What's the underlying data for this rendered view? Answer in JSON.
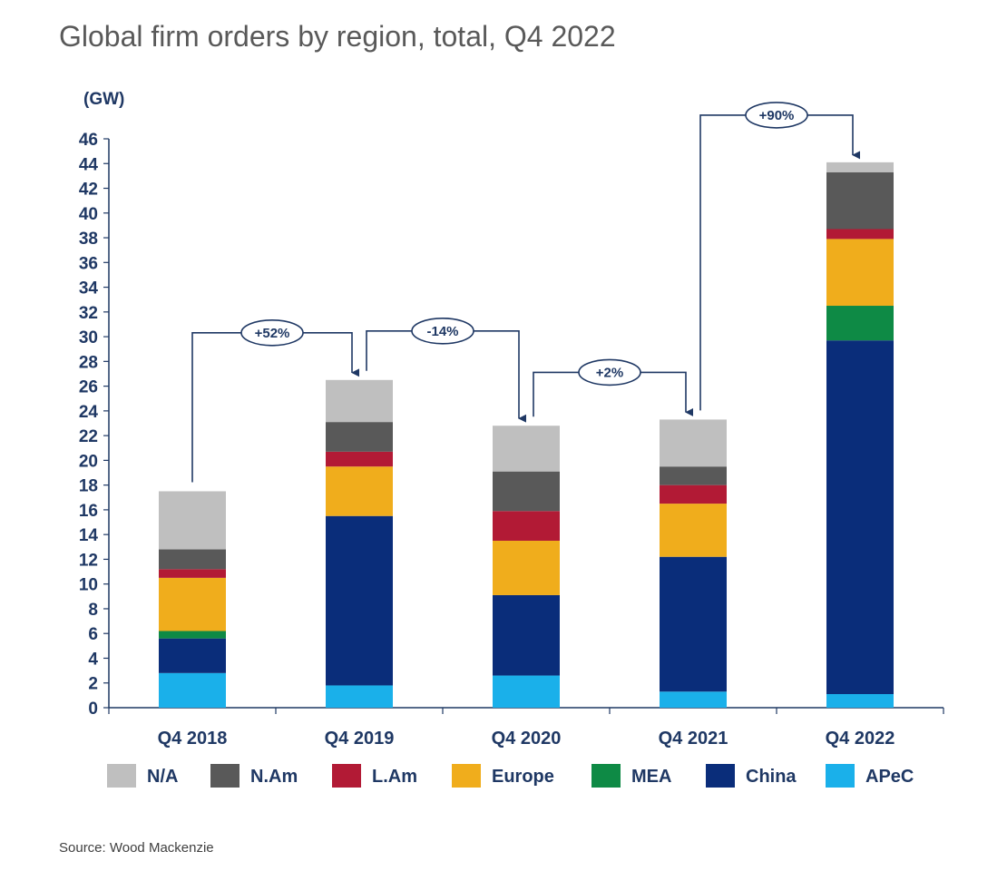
{
  "chart_data": {
    "type": "bar",
    "stacked": true,
    "title": "Global firm orders by region, total, Q4 2022",
    "unit_label": "(GW)",
    "source": "Source: Wood Mackenzie",
    "categories": [
      "Q4 2018",
      "Q4 2019",
      "Q4 2020",
      "Q4 2021",
      "Q4 2022"
    ],
    "ylim": [
      0,
      46
    ],
    "yticks": [
      0,
      2,
      4,
      6,
      8,
      10,
      12,
      14,
      16,
      18,
      20,
      22,
      24,
      26,
      28,
      30,
      32,
      34,
      36,
      38,
      40,
      42,
      44,
      46
    ],
    "grid": false,
    "legend_position": "bottom",
    "series": [
      {
        "name": "APeC",
        "color": "#1ab0ea",
        "values": [
          2.8,
          1.8,
          2.6,
          1.3,
          1.1
        ]
      },
      {
        "name": "China",
        "color": "#0a2d7a",
        "values": [
          2.8,
          13.7,
          6.5,
          10.9,
          28.6
        ]
      },
      {
        "name": "MEA",
        "color": "#0e8a45",
        "values": [
          0.6,
          0.0,
          0.0,
          0.0,
          2.8
        ]
      },
      {
        "name": "Europe",
        "color": "#f0ad1c",
        "values": [
          4.3,
          4.0,
          4.4,
          4.3,
          5.4
        ]
      },
      {
        "name": "L.Am",
        "color": "#b21a35",
        "values": [
          0.7,
          1.2,
          2.4,
          1.5,
          0.8
        ]
      },
      {
        "name": "N.Am",
        "color": "#595959",
        "values": [
          1.6,
          2.4,
          3.2,
          1.5,
          4.6
        ]
      },
      {
        "name": "N/A",
        "color": "#bfbfbf",
        "values": [
          4.7,
          3.4,
          3.7,
          3.8,
          0.8
        ]
      }
    ],
    "legend_order": [
      "N/A",
      "N.Am",
      "L.Am",
      "Europe",
      "MEA",
      "China",
      "APeC"
    ],
    "annotations": [
      {
        "from": 0,
        "to": 1,
        "label": "+52%"
      },
      {
        "from": 1,
        "to": 2,
        "label": "-14%"
      },
      {
        "from": 2,
        "to": 3,
        "label": "+2%"
      },
      {
        "from": 3,
        "to": 4,
        "label": "+90%"
      }
    ]
  }
}
